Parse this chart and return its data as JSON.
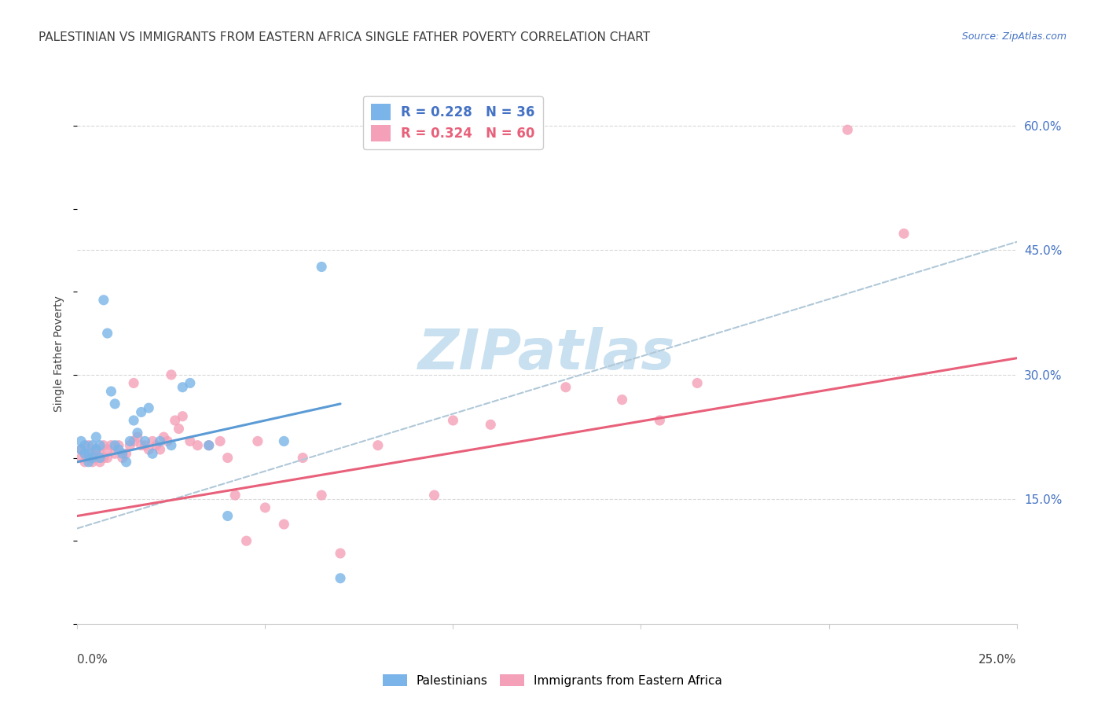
{
  "title": "PALESTINIAN VS IMMIGRANTS FROM EASTERN AFRICA SINGLE FATHER POVERTY CORRELATION CHART",
  "source": "Source: ZipAtlas.com",
  "ylabel": "Single Father Poverty",
  "xlim": [
    0.0,
    0.25
  ],
  "ylim": [
    0.0,
    0.65
  ],
  "y_ticks": [
    0.15,
    0.3,
    0.45,
    0.6
  ],
  "y_tick_labels": [
    "15.0%",
    "30.0%",
    "45.0%",
    "60.0%"
  ],
  "x_tick_positions": [
    0.0,
    0.05,
    0.1,
    0.15,
    0.2,
    0.25
  ],
  "watermark_text": "ZIPatlas",
  "palestinians_x": [
    0.001,
    0.001,
    0.002,
    0.002,
    0.003,
    0.003,
    0.004,
    0.004,
    0.005,
    0.005,
    0.006,
    0.006,
    0.007,
    0.008,
    0.009,
    0.01,
    0.01,
    0.011,
    0.012,
    0.013,
    0.014,
    0.015,
    0.016,
    0.017,
    0.018,
    0.019,
    0.02,
    0.022,
    0.025,
    0.028,
    0.03,
    0.035,
    0.04,
    0.055,
    0.065,
    0.07
  ],
  "palestinians_y": [
    0.21,
    0.22,
    0.205,
    0.215,
    0.205,
    0.195,
    0.215,
    0.2,
    0.21,
    0.225,
    0.2,
    0.215,
    0.39,
    0.35,
    0.28,
    0.265,
    0.215,
    0.21,
    0.205,
    0.195,
    0.22,
    0.245,
    0.23,
    0.255,
    0.22,
    0.26,
    0.205,
    0.22,
    0.215,
    0.285,
    0.29,
    0.215,
    0.13,
    0.22,
    0.43,
    0.055
  ],
  "eastern_africa_x": [
    0.001,
    0.001,
    0.002,
    0.002,
    0.003,
    0.003,
    0.004,
    0.004,
    0.005,
    0.005,
    0.006,
    0.006,
    0.007,
    0.007,
    0.008,
    0.008,
    0.009,
    0.01,
    0.011,
    0.012,
    0.013,
    0.014,
    0.015,
    0.015,
    0.016,
    0.017,
    0.018,
    0.019,
    0.02,
    0.021,
    0.022,
    0.023,
    0.024,
    0.025,
    0.026,
    0.027,
    0.028,
    0.03,
    0.032,
    0.035,
    0.038,
    0.04,
    0.042,
    0.045,
    0.048,
    0.05,
    0.055,
    0.06,
    0.065,
    0.07,
    0.08,
    0.095,
    0.1,
    0.11,
    0.13,
    0.145,
    0.155,
    0.165,
    0.205,
    0.22
  ],
  "eastern_africa_y": [
    0.2,
    0.21,
    0.195,
    0.205,
    0.2,
    0.215,
    0.205,
    0.195,
    0.21,
    0.2,
    0.195,
    0.205,
    0.215,
    0.2,
    0.21,
    0.2,
    0.215,
    0.205,
    0.215,
    0.2,
    0.205,
    0.215,
    0.22,
    0.29,
    0.225,
    0.215,
    0.215,
    0.21,
    0.22,
    0.215,
    0.21,
    0.225,
    0.22,
    0.3,
    0.245,
    0.235,
    0.25,
    0.22,
    0.215,
    0.215,
    0.22,
    0.2,
    0.155,
    0.1,
    0.22,
    0.14,
    0.12,
    0.2,
    0.155,
    0.085,
    0.215,
    0.155,
    0.245,
    0.24,
    0.285,
    0.27,
    0.245,
    0.29,
    0.595,
    0.47
  ],
  "blue_line_x": [
    0.0,
    0.07
  ],
  "blue_line_y": [
    0.195,
    0.265
  ],
  "pink_line_x": [
    0.0,
    0.25
  ],
  "pink_line_y": [
    0.13,
    0.32
  ],
  "dashed_line_x": [
    0.0,
    0.25
  ],
  "dashed_line_y": [
    0.115,
    0.46
  ],
  "blue_line_color": "#5b9bd5",
  "pink_line_color": "#e8607a",
  "dashed_line_color": "#b0c8d8",
  "dot_color_blue": "#7ab4e8",
  "dot_color_pink": "#f4a0b8",
  "background_color": "#ffffff",
  "grid_color": "#d8d8d8",
  "title_color": "#404040",
  "source_color": "#4472c4",
  "ytick_color": "#4472c4",
  "xtick_color": "#404040",
  "ylabel_color": "#404040",
  "title_fontsize": 11,
  "axis_label_fontsize": 10,
  "tick_fontsize": 11,
  "watermark_fontsize": 52,
  "watermark_color": "#c8e0f0",
  "legend_text_colors": [
    "#4472c4",
    "#e8607a"
  ],
  "legend_text_bold": true
}
